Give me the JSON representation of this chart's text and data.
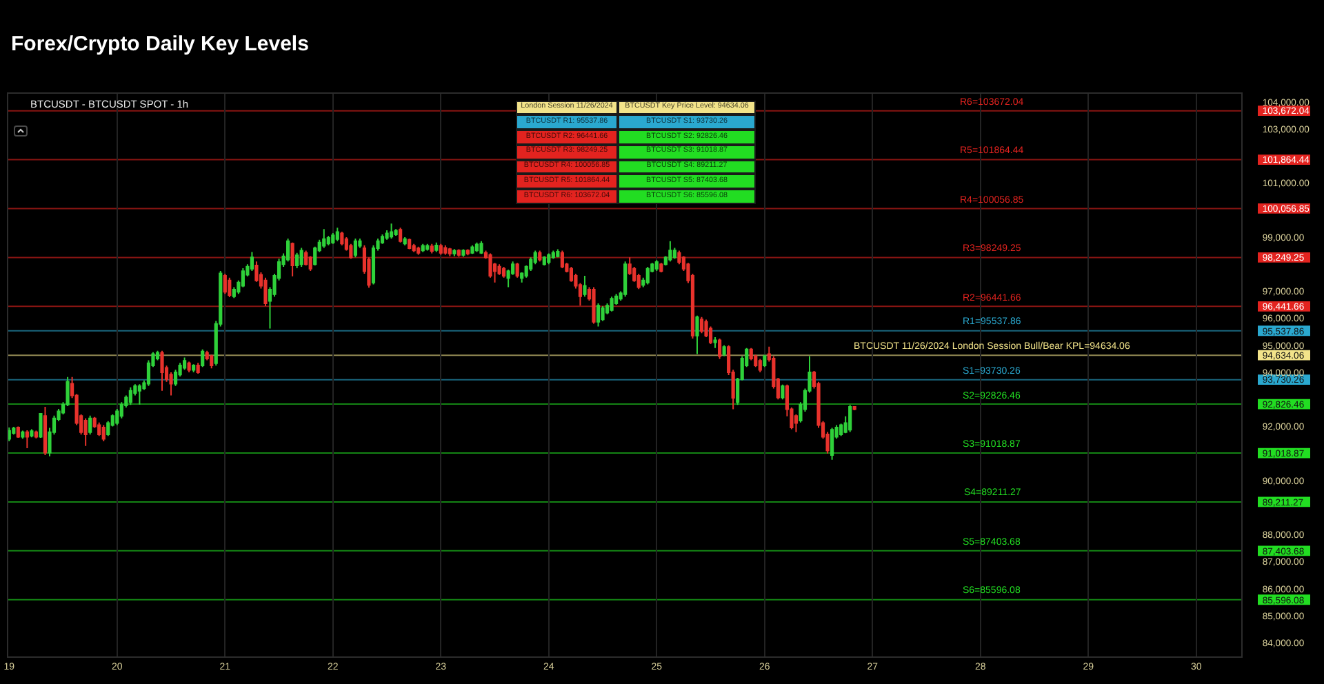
{
  "chart_data": {
    "type": "candlestick",
    "title": "Forex/Crypto Daily Key Levels",
    "subtitle": "BTCUSDT - BTCUSDT SPOT - 1h",
    "x": [
      "2024-11-19T00:00",
      "2024-11-19T01:00",
      "2024-11-19T02:00",
      "2024-11-19T03:00",
      "2024-11-19T04:00",
      "2024-11-19T05:00",
      "2024-11-19T06:00",
      "2024-11-19T07:00",
      "2024-11-19T08:00",
      "2024-11-19T09:00",
      "2024-11-19T10:00",
      "2024-11-19T11:00",
      "2024-11-19T12:00",
      "2024-11-19T13:00",
      "2024-11-19T14:00",
      "2024-11-19T15:00",
      "2024-11-19T16:00",
      "2024-11-19T17:00",
      "2024-11-19T18:00",
      "2024-11-19T19:00",
      "2024-11-19T20:00",
      "2024-11-19T21:00",
      "2024-11-19T22:00",
      "2024-11-19T23:00",
      "2024-11-20T00:00",
      "2024-11-20T01:00",
      "2024-11-20T02:00",
      "2024-11-20T03:00",
      "2024-11-20T04:00",
      "2024-11-20T05:00",
      "2024-11-20T06:00",
      "2024-11-20T07:00",
      "2024-11-20T08:00",
      "2024-11-20T09:00",
      "2024-11-20T10:00",
      "2024-11-20T11:00",
      "2024-11-20T12:00",
      "2024-11-20T13:00",
      "2024-11-20T14:00",
      "2024-11-20T15:00",
      "2024-11-20T16:00",
      "2024-11-20T17:00",
      "2024-11-20T18:00",
      "2024-11-20T19:00",
      "2024-11-20T20:00",
      "2024-11-20T21:00",
      "2024-11-20T22:00",
      "2024-11-20T23:00",
      "2024-11-21T00:00",
      "2024-11-21T01:00",
      "2024-11-21T02:00",
      "2024-11-21T03:00",
      "2024-11-21T04:00",
      "2024-11-21T05:00",
      "2024-11-21T06:00",
      "2024-11-21T07:00",
      "2024-11-21T08:00",
      "2024-11-21T09:00",
      "2024-11-21T10:00",
      "2024-11-21T11:00",
      "2024-11-21T12:00",
      "2024-11-21T13:00",
      "2024-11-21T14:00",
      "2024-11-21T15:00",
      "2024-11-21T16:00",
      "2024-11-21T17:00",
      "2024-11-21T18:00",
      "2024-11-21T19:00",
      "2024-11-21T20:00",
      "2024-11-21T21:00",
      "2024-11-21T22:00",
      "2024-11-21T23:00",
      "2024-11-22T00:00",
      "2024-11-22T01:00",
      "2024-11-22T02:00",
      "2024-11-22T03:00",
      "2024-11-22T04:00",
      "2024-11-22T05:00",
      "2024-11-22T06:00",
      "2024-11-22T07:00",
      "2024-11-22T08:00",
      "2024-11-22T09:00",
      "2024-11-22T10:00",
      "2024-11-22T11:00",
      "2024-11-22T12:00",
      "2024-11-22T13:00",
      "2024-11-22T14:00",
      "2024-11-22T15:00",
      "2024-11-22T16:00",
      "2024-11-22T17:00",
      "2024-11-22T18:00",
      "2024-11-22T19:00",
      "2024-11-22T20:00",
      "2024-11-22T21:00",
      "2024-11-22T22:00",
      "2024-11-22T23:00",
      "2024-11-23T00:00",
      "2024-11-23T01:00",
      "2024-11-23T02:00",
      "2024-11-23T03:00",
      "2024-11-23T04:00",
      "2024-11-23T05:00",
      "2024-11-23T06:00",
      "2024-11-23T07:00",
      "2024-11-23T08:00",
      "2024-11-23T09:00",
      "2024-11-23T10:00",
      "2024-11-23T11:00",
      "2024-11-23T12:00",
      "2024-11-23T13:00",
      "2024-11-23T14:00",
      "2024-11-23T15:00",
      "2024-11-23T16:00",
      "2024-11-23T17:00",
      "2024-11-23T18:00",
      "2024-11-23T19:00",
      "2024-11-23T20:00",
      "2024-11-23T21:00",
      "2024-11-23T22:00",
      "2024-11-23T23:00",
      "2024-11-24T00:00",
      "2024-11-24T01:00",
      "2024-11-24T02:00",
      "2024-11-24T03:00",
      "2024-11-24T04:00",
      "2024-11-24T05:00",
      "2024-11-24T06:00",
      "2024-11-24T07:00",
      "2024-11-24T08:00",
      "2024-11-24T09:00",
      "2024-11-24T10:00",
      "2024-11-24T11:00",
      "2024-11-24T12:00",
      "2024-11-24T13:00",
      "2024-11-24T14:00",
      "2024-11-24T15:00",
      "2024-11-24T16:00",
      "2024-11-24T17:00",
      "2024-11-24T18:00",
      "2024-11-24T19:00",
      "2024-11-24T20:00",
      "2024-11-24T21:00",
      "2024-11-24T22:00",
      "2024-11-24T23:00",
      "2024-11-25T00:00",
      "2024-11-25T01:00",
      "2024-11-25T02:00",
      "2024-11-25T03:00",
      "2024-11-25T04:00",
      "2024-11-25T05:00",
      "2024-11-25T06:00",
      "2024-11-25T07:00",
      "2024-11-25T08:00",
      "2024-11-25T09:00",
      "2024-11-25T10:00",
      "2024-11-25T11:00",
      "2024-11-25T12:00",
      "2024-11-25T13:00",
      "2024-11-25T14:00",
      "2024-11-25T15:00",
      "2024-11-25T16:00",
      "2024-11-25T17:00",
      "2024-11-25T18:00",
      "2024-11-25T19:00",
      "2024-11-25T20:00",
      "2024-11-25T21:00",
      "2024-11-25T22:00",
      "2024-11-25T23:00",
      "2024-11-26T00:00",
      "2024-11-26T01:00",
      "2024-11-26T02:00",
      "2024-11-26T03:00",
      "2024-11-26T04:00",
      "2024-11-26T05:00",
      "2024-11-26T06:00",
      "2024-11-26T07:00",
      "2024-11-26T08:00",
      "2024-11-26T09:00",
      "2024-11-26T10:00",
      "2024-11-26T11:00",
      "2024-11-26T12:00",
      "2024-11-26T13:00",
      "2024-11-26T14:00",
      "2024-11-26T15:00",
      "2024-11-26T16:00",
      "2024-11-26T17:00",
      "2024-11-26T18:00",
      "2024-11-26T19:00",
      "2024-11-26T20:00"
    ],
    "ohlc": [
      [
        91540,
        91960,
        91450,
        91840
      ],
      [
        91760,
        91990,
        91700,
        91930
      ],
      [
        91960,
        92000,
        91580,
        91620
      ],
      [
        91620,
        91850,
        91550,
        91790
      ],
      [
        91790,
        91860,
        91200,
        91620
      ],
      [
        91660,
        91900,
        91600,
        91830
      ],
      [
        91790,
        91850,
        91560,
        91620
      ],
      [
        91620,
        92500,
        91580,
        92470
      ],
      [
        92390,
        92730,
        90940,
        91030
      ],
      [
        91030,
        91950,
        90900,
        91790
      ],
      [
        91790,
        92400,
        91700,
        92300
      ],
      [
        92270,
        92650,
        92200,
        92560
      ],
      [
        92510,
        92900,
        92450,
        92810
      ],
      [
        92810,
        93830,
        92750,
        93660
      ],
      [
        93580,
        93830,
        93050,
        93150
      ],
      [
        93150,
        93200,
        92050,
        92130
      ],
      [
        92390,
        92450,
        91700,
        91790
      ],
      [
        92220,
        92300,
        91280,
        91710
      ],
      [
        91790,
        92400,
        91700,
        92300
      ],
      [
        92300,
        92350,
        91950,
        92000
      ],
      [
        92050,
        92150,
        91650,
        91710
      ],
      [
        91960,
        92050,
        91450,
        91540
      ],
      [
        91710,
        92200,
        91650,
        92130
      ],
      [
        92050,
        92450,
        92000,
        92390
      ],
      [
        92130,
        92650,
        92050,
        92560
      ],
      [
        92390,
        92900,
        92300,
        92810
      ],
      [
        92780,
        93150,
        92700,
        93070
      ],
      [
        92900,
        93450,
        92800,
        93320
      ],
      [
        93240,
        93560,
        93150,
        93490
      ],
      [
        93320,
        93560,
        92810,
        93490
      ],
      [
        93410,
        93700,
        93350,
        93610
      ],
      [
        93580,
        94450,
        93500,
        94340
      ],
      [
        94260,
        94750,
        94200,
        94680
      ],
      [
        94510,
        94800,
        94450,
        94720
      ],
      [
        94720,
        94800,
        93320,
        94000
      ],
      [
        94170,
        94250,
        93650,
        93750
      ],
      [
        93920,
        94000,
        93150,
        93580
      ],
      [
        93580,
        94100,
        93500,
        94000
      ],
      [
        93920,
        94350,
        93850,
        94260
      ],
      [
        94170,
        94550,
        94100,
        94430
      ],
      [
        94340,
        94400,
        94000,
        94090
      ],
      [
        94090,
        94300,
        94000,
        94260
      ],
      [
        94260,
        94350,
        93950,
        94000
      ],
      [
        94260,
        94850,
        94200,
        94770
      ],
      [
        94720,
        94800,
        94450,
        94510
      ],
      [
        94600,
        94650,
        94150,
        94260
      ],
      [
        94340,
        95900,
        94250,
        95790
      ],
      [
        95790,
        97750,
        95700,
        97660
      ],
      [
        97570,
        97650,
        96900,
        96980
      ],
      [
        97400,
        97500,
        96780,
        96860
      ],
      [
        96810,
        97150,
        96750,
        97060
      ],
      [
        96980,
        97400,
        96900,
        97320
      ],
      [
        97200,
        97850,
        97150,
        97740
      ],
      [
        97610,
        98000,
        97550,
        97910
      ],
      [
        97830,
        98450,
        97750,
        98250
      ],
      [
        97950,
        98100,
        97350,
        97400
      ],
      [
        97610,
        97700,
        97100,
        97200
      ],
      [
        97400,
        97500,
        96450,
        96550
      ],
      [
        96640,
        97150,
        95620,
        97060
      ],
      [
        96890,
        97650,
        96800,
        97570
      ],
      [
        97490,
        98200,
        97400,
        98080
      ],
      [
        98000,
        98400,
        97900,
        98290
      ],
      [
        98170,
        98950,
        98100,
        98850
      ],
      [
        98760,
        98800,
        97550,
        97950
      ],
      [
        97950,
        98420,
        97850,
        98330
      ],
      [
        98000,
        98600,
        97900,
        98500
      ],
      [
        98420,
        98500,
        97950,
        98000
      ],
      [
        98250,
        98300,
        97750,
        97830
      ],
      [
        98000,
        98650,
        97950,
        98590
      ],
      [
        98510,
        98900,
        98450,
        98800
      ],
      [
        98680,
        99300,
        98600,
        98930
      ],
      [
        98760,
        99050,
        98700,
        98970
      ],
      [
        98800,
        99150,
        98750,
        99070
      ],
      [
        98930,
        99350,
        98850,
        99190
      ],
      [
        99140,
        99200,
        98700,
        98760
      ],
      [
        98930,
        99000,
        98500,
        98560
      ],
      [
        98680,
        98750,
        98200,
        98250
      ],
      [
        98340,
        98950,
        98250,
        98850
      ],
      [
        98680,
        98950,
        98600,
        98850
      ],
      [
        98590,
        98700,
        97650,
        97740
      ],
      [
        98170,
        98250,
        97130,
        97230
      ],
      [
        97320,
        98700,
        97250,
        98590
      ],
      [
        98590,
        98950,
        98500,
        98850
      ],
      [
        98800,
        99100,
        98750,
        99020
      ],
      [
        98970,
        99250,
        98900,
        99140
      ],
      [
        99020,
        99500,
        98950,
        99190
      ],
      [
        99100,
        99300,
        99050,
        99240
      ],
      [
        99270,
        99350,
        98800,
        98850
      ],
      [
        98760,
        99000,
        98700,
        98930
      ],
      [
        98900,
        98950,
        98550,
        98590
      ],
      [
        98680,
        98750,
        98450,
        98510
      ],
      [
        98590,
        98650,
        98350,
        98420
      ],
      [
        98510,
        98750,
        98450,
        98680
      ],
      [
        98560,
        98750,
        98500,
        98680
      ],
      [
        98660,
        98750,
        98400,
        98490
      ],
      [
        98520,
        98800,
        98450,
        98690
      ],
      [
        98680,
        98750,
        98350,
        98420
      ],
      [
        98600,
        98700,
        98350,
        98420
      ],
      [
        98560,
        98600,
        98300,
        98390
      ],
      [
        98390,
        98560,
        98300,
        98500
      ],
      [
        98510,
        98550,
        98280,
        98340
      ],
      [
        98340,
        98550,
        98280,
        98510
      ],
      [
        98510,
        98550,
        98330,
        98390
      ],
      [
        98420,
        98700,
        98380,
        98630
      ],
      [
        98510,
        98800,
        98450,
        98730
      ],
      [
        98420,
        98850,
        98380,
        98760
      ],
      [
        98420,
        98500,
        98200,
        98250
      ],
      [
        98340,
        98400,
        97500,
        97570
      ],
      [
        98000,
        98050,
        97320,
        97740
      ],
      [
        97910,
        98000,
        97600,
        97660
      ],
      [
        97830,
        97900,
        97500,
        97570
      ],
      [
        97490,
        97800,
        97150,
        97740
      ],
      [
        97660,
        98100,
        97600,
        98000
      ],
      [
        98000,
        98050,
        97500,
        97570
      ],
      [
        97490,
        97700,
        97320,
        97660
      ],
      [
        97570,
        97950,
        97500,
        97910
      ],
      [
        97830,
        98250,
        97750,
        98170
      ],
      [
        98080,
        98500,
        98000,
        98420
      ],
      [
        98420,
        98500,
        98100,
        98170
      ],
      [
        98000,
        98300,
        97950,
        98250
      ],
      [
        98080,
        98400,
        98000,
        98340
      ],
      [
        98250,
        98500,
        98200,
        98420
      ],
      [
        98290,
        98550,
        98250,
        98460
      ],
      [
        98420,
        98500,
        97850,
        97910
      ],
      [
        98000,
        98050,
        97700,
        97740
      ],
      [
        97830,
        97900,
        97350,
        97400
      ],
      [
        97570,
        97650,
        97100,
        97200
      ],
      [
        97230,
        97300,
        96470,
        96810
      ],
      [
        96890,
        97570,
        96800,
        97200
      ],
      [
        97060,
        97150,
        96650,
        96720
      ],
      [
        97060,
        97150,
        95800,
        95870
      ],
      [
        95870,
        96550,
        95700,
        96470
      ],
      [
        95960,
        96450,
        95900,
        96380
      ],
      [
        96210,
        96550,
        96150,
        96470
      ],
      [
        96300,
        96800,
        96250,
        96720
      ],
      [
        96550,
        96900,
        96500,
        96810
      ],
      [
        96720,
        97000,
        96650,
        96930
      ],
      [
        96890,
        98100,
        96800,
        98000
      ],
      [
        98000,
        98250,
        97600,
        97660
      ],
      [
        97830,
        97900,
        97350,
        97400
      ],
      [
        97570,
        97650,
        97080,
        97150
      ],
      [
        97230,
        97500,
        97150,
        97400
      ],
      [
        97320,
        97900,
        97250,
        97830
      ],
      [
        97740,
        98050,
        97700,
        98000
      ],
      [
        97830,
        98150,
        97750,
        98080
      ],
      [
        98000,
        98050,
        97700,
        97740
      ],
      [
        98000,
        98300,
        97950,
        98250
      ],
      [
        98170,
        98850,
        98100,
        98510
      ],
      [
        98250,
        98600,
        98200,
        98510
      ],
      [
        98420,
        98500,
        98000,
        98080
      ],
      [
        98250,
        98300,
        97750,
        97830
      ],
      [
        98000,
        98050,
        97300,
        97400
      ],
      [
        97570,
        97650,
        95250,
        95360
      ],
      [
        95360,
        96100,
        94680,
        96040
      ],
      [
        95960,
        96050,
        95450,
        95530
      ],
      [
        95870,
        95950,
        95300,
        95360
      ],
      [
        95620,
        95700,
        95050,
        95110
      ],
      [
        95110,
        95300,
        94900,
        95190
      ],
      [
        95190,
        95250,
        94500,
        94600
      ],
      [
        94680,
        95000,
        94600,
        94940
      ],
      [
        94940,
        95000,
        93900,
        94000
      ],
      [
        94000,
        94100,
        92640,
        93060
      ],
      [
        92900,
        93800,
        92800,
        93750
      ],
      [
        93750,
        94600,
        93700,
        94510
      ],
      [
        94260,
        94900,
        94200,
        94850
      ],
      [
        94850,
        94900,
        94450,
        94510
      ],
      [
        94600,
        94650,
        94200,
        94260
      ],
      [
        94430,
        94500,
        94000,
        94090
      ],
      [
        94260,
        94650,
        94200,
        94600
      ],
      [
        94680,
        94950,
        94400,
        94480
      ],
      [
        94510,
        94600,
        93400,
        93490
      ],
      [
        93750,
        93800,
        93000,
        93070
      ],
      [
        93070,
        93550,
        93000,
        93490
      ],
      [
        93490,
        93550,
        92380,
        92640
      ],
      [
        92640,
        92700,
        91900,
        91960
      ],
      [
        92390,
        92450,
        91790,
        92130
      ],
      [
        92220,
        92900,
        92150,
        92810
      ],
      [
        92640,
        93400,
        92550,
        93320
      ],
      [
        93320,
        94600,
        93250,
        94000
      ],
      [
        94000,
        94050,
        93400,
        93490
      ],
      [
        93580,
        93650,
        91950,
        92050
      ],
      [
        92130,
        92200,
        91550,
        91620
      ],
      [
        91710,
        91800,
        91000,
        91110
      ],
      [
        90940,
        91950,
        90770,
        91880
      ],
      [
        91620,
        92050,
        91550,
        91960
      ],
      [
        91710,
        92100,
        91650,
        92050
      ],
      [
        91790,
        92380,
        91750,
        92130
      ],
      [
        91880,
        92800,
        91800,
        92730
      ],
      [
        92730,
        92750,
        92600,
        92640
      ]
    ],
    "xlim": [
      "2024-11-18T23:48",
      "2024-11-30T10:00"
    ],
    "xticks": [
      {
        "value": "2024-11-19",
        "label": "19"
      },
      {
        "value": "2024-11-20",
        "label": "20"
      },
      {
        "value": "2024-11-21",
        "label": "21"
      },
      {
        "value": "2024-11-22",
        "label": "22"
      },
      {
        "value": "2024-11-23",
        "label": "23"
      },
      {
        "value": "2024-11-24",
        "label": "24"
      },
      {
        "value": "2024-11-25",
        "label": "25"
      },
      {
        "value": "2024-11-26",
        "label": "26"
      },
      {
        "value": "2024-11-27",
        "label": "27"
      },
      {
        "value": "2024-11-28",
        "label": "28"
      },
      {
        "value": "2024-11-29",
        "label": "29"
      },
      {
        "value": "2024-11-30",
        "label": "30"
      }
    ],
    "ylim": [
      83500,
      104300
    ],
    "yticks": [
      {
        "value": 84000,
        "label": "84,000.00"
      },
      {
        "value": 85000,
        "label": "85,000.00"
      },
      {
        "value": 85596.08,
        "label": "85,596.08"
      },
      {
        "value": 86000,
        "label": "86,000.00"
      },
      {
        "value": 87000,
        "label": "87,000.00"
      },
      {
        "value": 87403.68,
        "label": "87,403.68"
      },
      {
        "value": 88000,
        "label": "88,000.00"
      },
      {
        "value": 89211.27,
        "label": "89,211.27"
      },
      {
        "value": 90000,
        "label": "90,000.00"
      },
      {
        "value": 91018.87,
        "label": "91,018.87"
      },
      {
        "value": 92000,
        "label": "92,000.00"
      },
      {
        "value": 92826.46,
        "label": "92,826.46"
      },
      {
        "value": 93730.26,
        "label": "93,730.26"
      },
      {
        "value": 94000,
        "label": "94,000.00"
      },
      {
        "value": 94634.06,
        "label": "94,634.06"
      },
      {
        "value": 95000,
        "label": "95,000.00"
      },
      {
        "value": 95537.86,
        "label": "95,537.86"
      },
      {
        "value": 96000,
        "label": "96,000.00"
      },
      {
        "value": 96441.66,
        "label": "96,441.66"
      },
      {
        "value": 97000,
        "label": "97,000.00"
      },
      {
        "value": 98249.25,
        "label": "98,249.25"
      },
      {
        "value": 99000,
        "label": "99,000.00"
      },
      {
        "value": 100056.85,
        "label": "100,056.85"
      },
      {
        "value": 101000,
        "label": "101,000.00"
      },
      {
        "value": 101864.44,
        "label": "101,864.44"
      },
      {
        "value": 103000,
        "label": "103,000.00"
      },
      {
        "value": 103672.04,
        "label": "103,672.04"
      },
      {
        "value": 104000,
        "label": "104,000.00"
      }
    ],
    "grid": "x",
    "ref_lines": [
      {
        "axis": "y",
        "value": 94634.06,
        "label": "BTCUSDT 11/26/2024 London Session Bull/Bear KPL=94634.06",
        "color": "#f2e38a"
      },
      {
        "axis": "y",
        "value": 95537.86,
        "label": "R1=95537.86",
        "color": "#2aa8cf"
      },
      {
        "axis": "y",
        "value": 93730.26,
        "label": "S1=93730.26",
        "color": "#2aa8cf"
      },
      {
        "axis": "y",
        "value": 96441.66,
        "label": "R2=96441.66",
        "color": "#e3231f"
      },
      {
        "axis": "y",
        "value": 92826.46,
        "label": "S2=92826.46",
        "color": "#22dd22"
      },
      {
        "axis": "y",
        "value": 98249.25,
        "label": "R3=98249.25",
        "color": "#e3231f"
      },
      {
        "axis": "y",
        "value": 91018.87,
        "label": "S3=91018.87",
        "color": "#22dd22"
      },
      {
        "axis": "y",
        "value": 100056.85,
        "label": "R4=100056.85",
        "color": "#e3231f"
      },
      {
        "axis": "y",
        "value": 89211.27,
        "label": "S4=89211.27",
        "color": "#22dd22"
      },
      {
        "axis": "y",
        "value": 101864.44,
        "label": "R5=101864.44",
        "color": "#e3231f"
      },
      {
        "axis": "y",
        "value": 87403.68,
        "label": "S5=87403.68",
        "color": "#22dd22"
      },
      {
        "axis": "y",
        "value": 103672.04,
        "label": "R6=103672.04",
        "color": "#e3231f"
      },
      {
        "axis": "y",
        "value": 85596.08,
        "label": "S6=85596.08",
        "color": "#22dd22"
      }
    ],
    "annotations": [
      "London Session 11/26/2024",
      "BTCUSDT Key Price Level: 94634.06",
      "BTCUSDT R1: 95537.86",
      "BTCUSDT S1: 93730.26",
      "BTCUSDT R2: 96441.66",
      "BTCUSDT S2: 92826.46",
      "BTCUSDT R3: 98249.25",
      "BTCUSDT S3: 91018.87",
      "BTCUSDT R4: 100056.85",
      "BTCUSDT S4: 89211.27",
      "BTCUSDT R5: 101864.44",
      "BTCUSDT S5: 87403.68",
      "BTCUSDT R6: 103672.04",
      "BTCUSDT S6: 85596.08"
    ]
  }
}
